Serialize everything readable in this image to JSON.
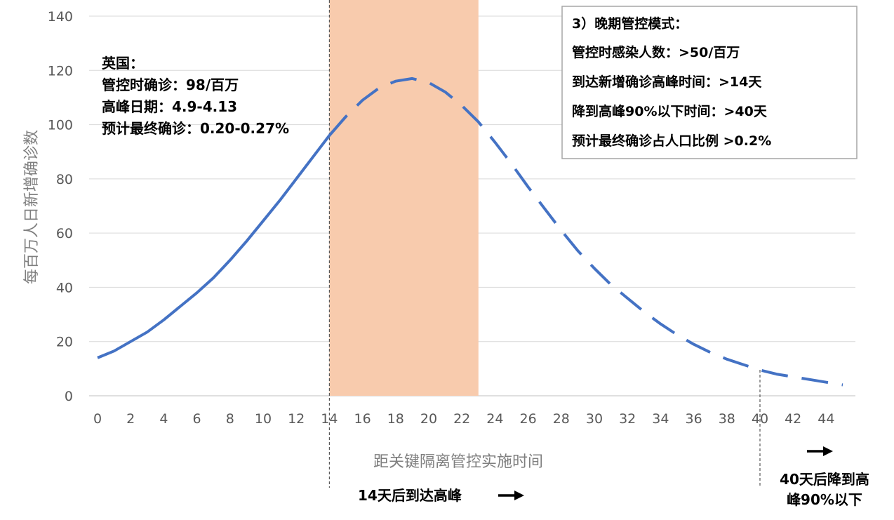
{
  "chart_data": {
    "type": "line",
    "xlabel": "距关键隔离管控实施时间",
    "ylabel": "每百万人日新增确诊数",
    "xlim": [
      0,
      45
    ],
    "ylim": [
      0,
      140
    ],
    "x_ticks": [
      "0",
      "2",
      "4",
      "6",
      "8",
      "10",
      "12",
      "14",
      "16",
      "18",
      "20",
      "22",
      "24",
      "26",
      "28",
      "30",
      "32",
      "34",
      "36",
      "38",
      "40",
      "42",
      "44"
    ],
    "y_ticks": [
      "0",
      "20",
      "40",
      "60",
      "80",
      "100",
      "120",
      "140"
    ],
    "grid": "horizontal",
    "shaded_band": {
      "from": 14,
      "to": 23,
      "color": "#f8cbad"
    },
    "vlines": [
      14,
      40
    ],
    "series": [
      {
        "style": "solid",
        "color": "#4472c4",
        "x": [
          0,
          1,
          2,
          3,
          4,
          5,
          6,
          7,
          8,
          9,
          10,
          11,
          12,
          13,
          14
        ],
        "values": [
          14,
          16.5,
          20,
          23.5,
          28,
          33,
          38,
          43.5,
          50,
          57,
          64.5,
          72,
          80,
          88,
          96
        ]
      },
      {
        "style": "dashed",
        "color": "#4472c4",
        "x": [
          14,
          15,
          16,
          17,
          18,
          19,
          20,
          21,
          22,
          23,
          24,
          25,
          26,
          27,
          28,
          29,
          30,
          31,
          32,
          33,
          34,
          35,
          36,
          37,
          38,
          39,
          40,
          41,
          42,
          43,
          44,
          45
        ],
        "values": [
          96,
          103,
          109,
          113.5,
          116,
          117,
          115.5,
          112,
          107,
          101,
          93.5,
          85.5,
          77,
          69,
          61,
          53.5,
          47,
          41,
          36,
          31,
          26.5,
          22.5,
          19,
          16,
          13.5,
          11.5,
          9.5,
          8,
          7,
          6,
          5,
          4
        ]
      }
    ],
    "annotations": {
      "uk": [
        "英国：",
        "管控时确诊：98/百万",
        "高峰日期：4.9-4.13",
        "预计最终确诊：0.20-0.27%"
      ],
      "box": [
        "3）晚期管控模式：",
        "管控时感染人数：>50/百万",
        "到达新增确诊高峰时间：>14天",
        "降到高峰90%以下时间：>40天",
        "预计最终确诊占人口比例 >0.2%"
      ],
      "peak_note": "14天后到达高峰",
      "decline_note": [
        "40天后降到高",
        "峰90%以下"
      ]
    }
  }
}
